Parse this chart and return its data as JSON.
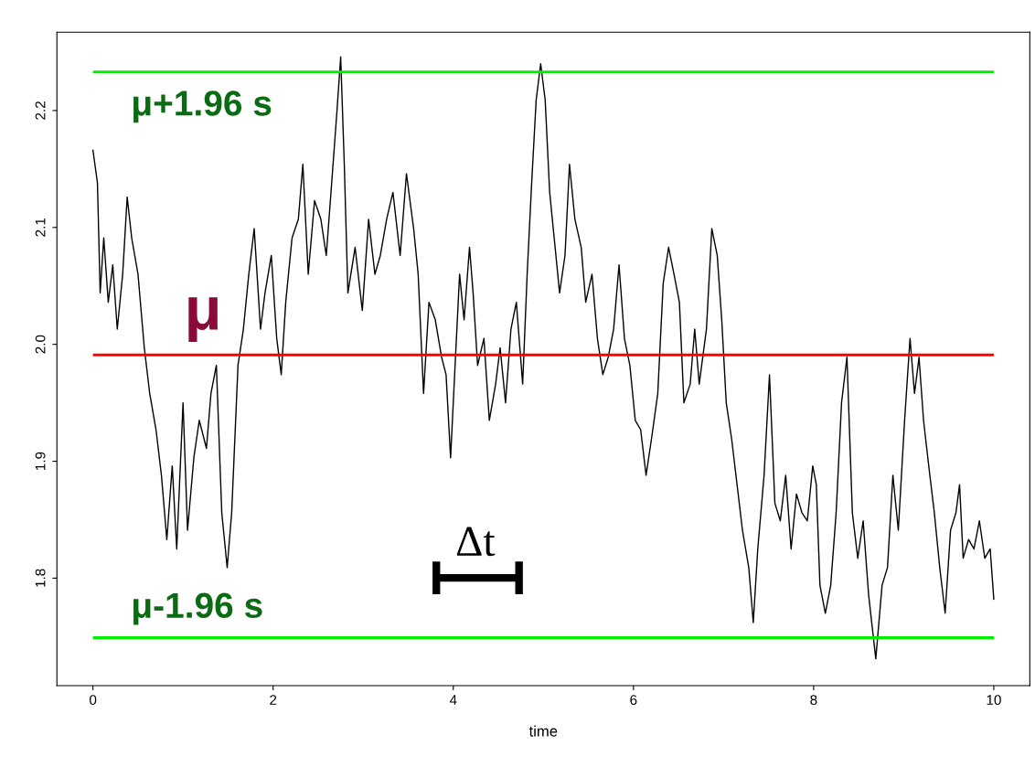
{
  "chart_data": {
    "type": "line",
    "xlabel": "time",
    "xlim": [
      -0.4,
      10.4
    ],
    "ylim": [
      1.708,
      2.267
    ],
    "xticks": [
      0,
      2,
      4,
      6,
      8,
      10
    ],
    "yticks": [
      1.8,
      1.9,
      {
        "value": 2.0,
        "label": "2.0"
      },
      2.1,
      2.2
    ],
    "grid": false,
    "legend": false,
    "marker": "none",
    "line_style": "solid",
    "ref_lines": [
      {
        "axis": "y",
        "value": 2.233,
        "label": "μ+1.96 s",
        "color": "#00ee00"
      },
      {
        "axis": "y",
        "value": 1.991,
        "label": "μ",
        "color": "#ff0000"
      },
      {
        "axis": "y",
        "value": 1.749,
        "label": "μ-1.96 s",
        "color": "#00ee00"
      }
    ],
    "annotations": [
      "Δt"
    ],
    "series": [
      {
        "color": "#000000",
        "x": [
          0,
          0.05,
          0.08,
          0.12,
          0.17,
          0.22,
          0.27,
          0.33,
          0.38,
          0.43,
          0.5,
          0.57,
          0.63,
          0.7,
          0.76,
          0.82,
          0.88,
          0.93,
          1.0,
          1.05,
          1.12,
          1.18,
          1.26,
          1.31,
          1.37,
          1.43,
          1.49,
          1.54,
          1.61,
          1.67,
          1.73,
          1.79,
          1.86,
          1.91,
          1.98,
          2.04,
          2.09,
          2.14,
          2.21,
          2.28,
          2.33,
          2.39,
          2.46,
          2.53,
          2.59,
          2.65,
          2.71,
          2.75,
          2.79,
          2.83,
          2.91,
          2.99,
          3.06,
          3.13,
          3.19,
          3.26,
          3.33,
          3.41,
          3.48,
          3.56,
          3.61,
          3.67,
          3.73,
          3.8,
          3.87,
          3.92,
          3.97,
          4.02,
          4.07,
          4.12,
          4.18,
          4.22,
          4.27,
          4.34,
          4.4,
          4.47,
          4.52,
          4.58,
          4.64,
          4.7,
          4.77,
          4.82,
          4.87,
          4.92,
          4.97,
          5.02,
          5.07,
          5.12,
          5.18,
          5.24,
          5.29,
          5.35,
          5.42,
          5.47,
          5.54,
          5.6,
          5.66,
          5.72,
          5.78,
          5.84,
          5.9,
          5.96,
          6.02,
          6.08,
          6.14,
          6.2,
          6.27,
          6.33,
          6.39,
          6.45,
          6.51,
          6.56,
          6.63,
          6.68,
          6.73,
          6.81,
          6.87,
          6.93,
          6.98,
          7.03,
          7.09,
          7.15,
          7.21,
          7.28,
          7.33,
          7.38,
          7.45,
          7.51,
          7.57,
          7.63,
          7.69,
          7.75,
          7.81,
          7.87,
          7.93,
          7.99,
          8.03,
          8.07,
          8.13,
          8.19,
          8.25,
          8.31,
          8.37,
          8.43,
          8.49,
          8.55,
          8.61,
          8.69,
          8.76,
          8.82,
          8.88,
          8.94,
          9.01,
          9.07,
          9.12,
          9.17,
          9.22,
          9.29,
          9.34,
          9.4,
          9.46,
          9.52,
          9.58,
          9.62,
          9.66,
          9.72,
          9.78,
          9.84,
          9.9,
          9.96,
          10.0
        ],
        "values": [
          2.166,
          2.138,
          2.044,
          2.091,
          2.036,
          2.068,
          2.013,
          2.06,
          2.126,
          2.091,
          2.06,
          1.997,
          1.958,
          1.927,
          1.888,
          1.833,
          1.896,
          1.825,
          1.95,
          1.841,
          1.903,
          1.935,
          1.911,
          1.958,
          1.982,
          1.856,
          1.809,
          1.856,
          1.982,
          2.013,
          2.06,
          2.099,
          2.013,
          2.044,
          2.076,
          2.005,
          1.974,
          2.036,
          2.091,
          2.107,
          2.154,
          2.06,
          2.123,
          2.107,
          2.076,
          2.138,
          2.201,
          2.246,
          2.154,
          2.044,
          2.083,
          2.029,
          2.107,
          2.06,
          2.076,
          2.107,
          2.13,
          2.076,
          2.146,
          2.099,
          2.06,
          1.958,
          2.036,
          2.021,
          1.989,
          1.974,
          1.903,
          1.982,
          2.06,
          2.021,
          2.083,
          2.044,
          1.982,
          2.005,
          1.935,
          1.966,
          1.997,
          1.95,
          2.013,
          2.036,
          1.966,
          2.06,
          2.138,
          2.209,
          2.24,
          2.209,
          2.13,
          2.091,
          2.044,
          2.076,
          2.154,
          2.107,
          2.083,
          2.036,
          2.06,
          2.005,
          1.974,
          1.989,
          2.013,
          2.068,
          2.005,
          1.982,
          1.935,
          1.927,
          1.888,
          1.919,
          1.958,
          2.052,
          2.083,
          2.06,
          2.036,
          1.95,
          1.966,
          2.013,
          1.966,
          2.013,
          2.099,
          2.076,
          2.021,
          1.95,
          1.919,
          1.88,
          1.841,
          1.809,
          1.762,
          1.825,
          1.888,
          1.974,
          1.864,
          1.849,
          1.888,
          1.825,
          1.872,
          1.856,
          1.849,
          1.896,
          1.88,
          1.794,
          1.77,
          1.794,
          1.856,
          1.95,
          1.989,
          1.856,
          1.817,
          1.849,
          1.786,
          1.731,
          1.794,
          1.809,
          1.888,
          1.841,
          1.935,
          2.005,
          1.958,
          1.989,
          1.935,
          1.888,
          1.856,
          1.809,
          1.77,
          1.841,
          1.856,
          1.88,
          1.817,
          1.833,
          1.825,
          1.849,
          1.817,
          1.825,
          1.782
        ]
      }
    ]
  }
}
